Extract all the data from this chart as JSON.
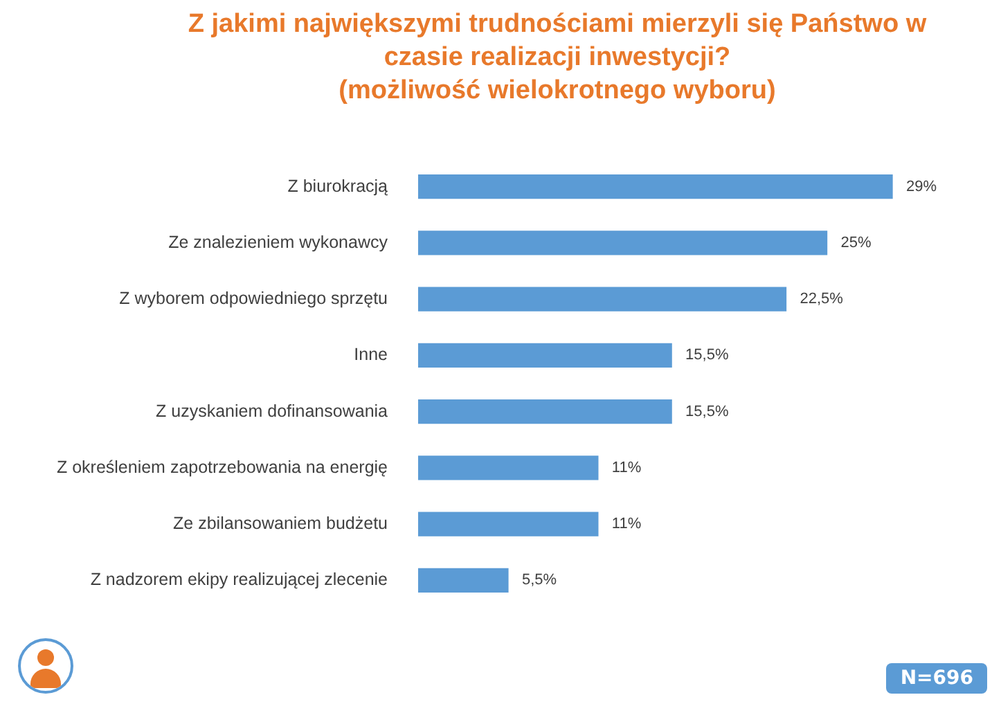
{
  "chart_data": {
    "type": "bar",
    "orientation": "horizontal",
    "title": "Z jakimi największymi trudnościami mierzyli się Państwo w czasie realizacji inwestycji?",
    "subtitle": "(możliwość wielokrotnego wyboru)",
    "categories": [
      "Z biurokracją",
      "Ze znalezieniem wykonawcy",
      "Z wyborem odpowiedniego sprzętu",
      "Inne",
      "Z uzyskaniem dofinansowania",
      "Z określeniem zapotrzebowania na energię",
      "Ze zbilansowaniem budżetu",
      "Z nadzorem ekipy realizującej zlecenie"
    ],
    "values": [
      29,
      25,
      22.5,
      15.5,
      15.5,
      11,
      11,
      5.5
    ],
    "value_labels": [
      "29%",
      "25%",
      "22,5%",
      "15,5%",
      "15,5%",
      "11%",
      "11%",
      "5,5%"
    ],
    "color": "#5b9bd5",
    "annotations": [
      "N=696"
    ]
  }
}
